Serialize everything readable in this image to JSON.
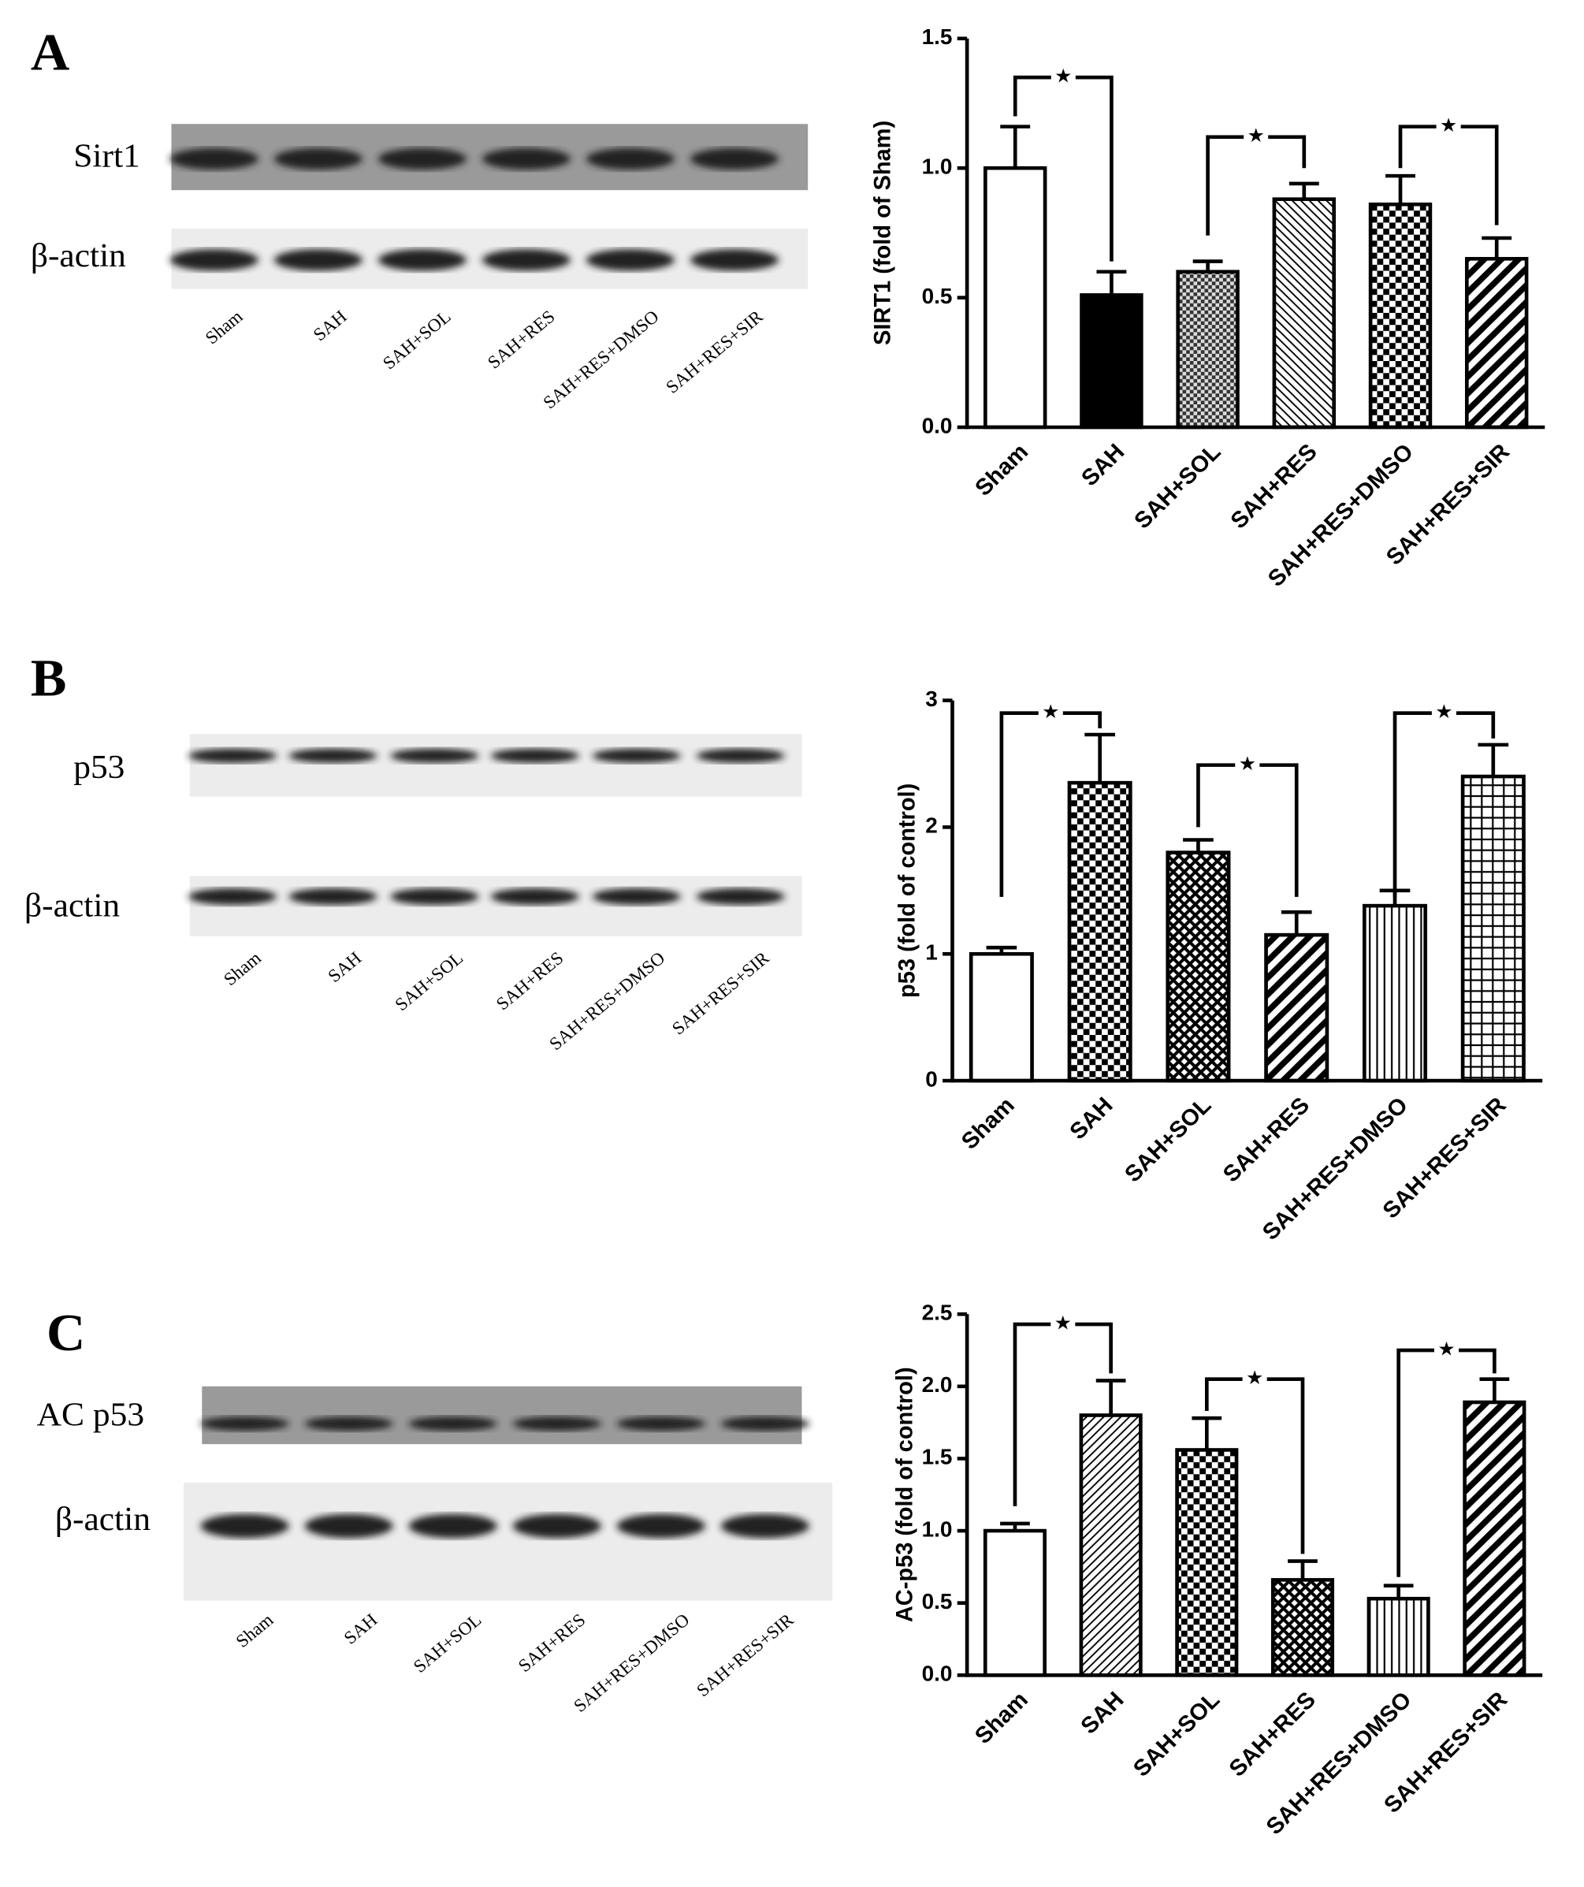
{
  "panels": [
    {
      "letter": "A",
      "blot_rows": [
        "Sirt1",
        "β-actin"
      ],
      "blot_lanes": [
        "Sham",
        "SAH",
        "SAH+SOL",
        "SAH+RES",
        "SAH+RES+DMSO",
        "SAH+RES+SIR"
      ]
    },
    {
      "letter": "B",
      "blot_rows": [
        "p53",
        "β-actin"
      ],
      "blot_lanes": [
        "Sham",
        "SAH",
        "SAH+SOL",
        "SAH+RES",
        "SAH+RES+DMSO",
        "SAH+RES+SIR"
      ]
    },
    {
      "letter": "C",
      "blot_rows": [
        "AC p53",
        "β-actin"
      ],
      "blot_lanes": [
        "Sham",
        "SAH",
        "SAH+SOL",
        "SAH+RES",
        "SAH+RES+DMSO",
        "SAH+RES+SIR"
      ]
    }
  ],
  "chart_data": [
    {
      "type": "bar",
      "ylabel": "SIRT1 (fold of Sham)",
      "categories": [
        "Sham",
        "SAH",
        "SAH+SOL",
        "SAH+RES",
        "SAH+RES+DMSO",
        "SAH+RES+SIR"
      ],
      "values": [
        1.0,
        0.51,
        0.6,
        0.88,
        0.86,
        0.65
      ],
      "errors": [
        0.16,
        0.09,
        0.04,
        0.06,
        0.11,
        0.08
      ],
      "patterns": [
        "open",
        "solid",
        "checker-fine",
        "back-diagonal",
        "checker",
        "forward-diagonal-thick"
      ],
      "ylim": [
        0,
        1.5
      ],
      "yticks": [
        {
          "value": 0,
          "label": "0.0"
        },
        {
          "value": 0.5,
          "label": "0.5"
        },
        {
          "value": 1,
          "label": "1.0"
        },
        {
          "value": 1.5,
          "label": "1.5"
        }
      ],
      "brackets": [
        {
          "from": 0,
          "to": 1,
          "y": 1.35,
          "y_from": 1.2,
          "y_to": 0.64,
          "label": "★"
        },
        {
          "from": 2,
          "to": 3,
          "y": 1.12,
          "y_from": 0.74,
          "y_to": 1.0,
          "label": "★"
        },
        {
          "from": 4,
          "to": 5,
          "y": 1.16,
          "y_from": 1.0,
          "y_to": 0.78,
          "label": "★"
        }
      ]
    },
    {
      "type": "bar",
      "ylabel": "p53 (fold of control)",
      "categories": [
        "Sham",
        "SAH",
        "SAH+SOL",
        "SAH+RES",
        "SAH+RES+DMSO",
        "SAH+RES+SIR"
      ],
      "values": [
        1.0,
        2.35,
        1.8,
        1.15,
        1.38,
        2.4
      ],
      "errors": [
        0.05,
        0.38,
        0.1,
        0.18,
        0.12,
        0.25
      ],
      "patterns": [
        "open",
        "checker",
        "cross-diagonal",
        "forward-diagonal-thick",
        "vertical",
        "grid"
      ],
      "ylim": [
        0,
        3
      ],
      "yticks": [
        0,
        1,
        2,
        3
      ],
      "brackets": [
        {
          "from": 0,
          "to": 1,
          "y": 2.9,
          "y_from": 1.45,
          "y_to": 2.78,
          "label": "★"
        },
        {
          "from": 2,
          "to": 3,
          "y": 2.49,
          "y_from": 2.0,
          "y_to": 1.45,
          "label": "★"
        },
        {
          "from": 4,
          "to": 5,
          "y": 2.9,
          "y_from": 1.45,
          "y_to": 2.7,
          "label": "★"
        }
      ]
    },
    {
      "type": "bar",
      "ylabel": "AC-p53 (fold of control)",
      "categories": [
        "Sham",
        "SAH",
        "SAH+SOL",
        "SAH+RES",
        "SAH+RES+DMSO",
        "SAH+RES+SIR"
      ],
      "values": [
        1.0,
        1.8,
        1.56,
        0.66,
        0.53,
        1.89
      ],
      "errors": [
        0.05,
        0.24,
        0.22,
        0.13,
        0.09,
        0.16
      ],
      "patterns": [
        "open",
        "forward-diagonal",
        "checker",
        "cross-diagonal",
        "vertical",
        "forward-diagonal-thick"
      ],
      "ylim": [
        0,
        2.5
      ],
      "yticks": [
        {
          "value": 0,
          "label": "0.0"
        },
        {
          "value": 0.5,
          "label": "0.5"
        },
        {
          "value": 1,
          "label": "1.0"
        },
        {
          "value": 1.5,
          "label": "1.5"
        },
        {
          "value": 2,
          "label": "2.0"
        },
        {
          "value": 2.5,
          "label": "2.5"
        }
      ],
      "brackets": [
        {
          "from": 0,
          "to": 1,
          "y": 2.43,
          "y_from": 1.17,
          "y_to": 2.09,
          "label": "★"
        },
        {
          "from": 2,
          "to": 3,
          "y": 2.05,
          "y_from": 1.83,
          "y_to": 0.84,
          "label": "★"
        },
        {
          "from": 4,
          "to": 5,
          "y": 2.25,
          "y_from": 0.68,
          "y_to": 2.09,
          "label": "★"
        }
      ]
    }
  ]
}
